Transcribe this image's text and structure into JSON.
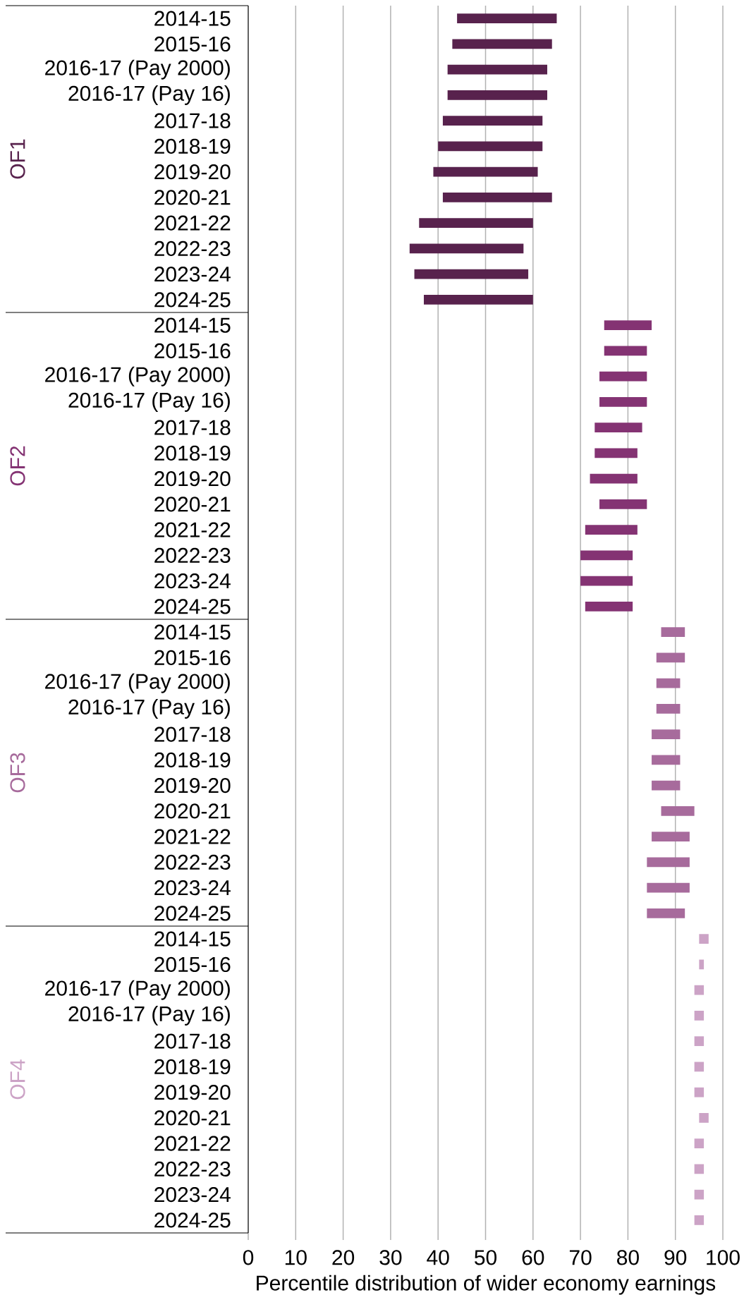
{
  "chart_data": {
    "type": "bar",
    "orientation": "horizontal",
    "xlabel": "Percentile distribution of wider economy earnings",
    "categories": [
      "2014-15",
      "2015-16",
      "2016-17 (Pay 2000)",
      "2016-17 (Pay 16)",
      "2017-18",
      "2018-19",
      "2019-20",
      "2020-21",
      "2021-22",
      "2022-23",
      "2023-24",
      "2024-25",
      "2014-15",
      "2015-16",
      "2016-17 (Pay 2000)",
      "2016-17 (Pay 16)",
      "2017-18",
      "2018-19",
      "2019-20",
      "2020-21",
      "2021-22",
      "2022-23",
      "2023-24",
      "2024-25",
      "2014-15",
      "2015-16",
      "2016-17 (Pay 2000)",
      "2016-17 (Pay 16)",
      "2017-18",
      "2018-19",
      "2019-20",
      "2020-21",
      "2021-22",
      "2022-23",
      "2023-24",
      "2024-25",
      "2014-15",
      "2015-16",
      "2016-17 (Pay 2000)",
      "2016-17 (Pay 16)",
      "2017-18",
      "2018-19",
      "2019-20",
      "2020-21",
      "2021-22",
      "2022-23",
      "2023-24",
      "2024-25"
    ],
    "series": [
      {
        "name": "OF1",
        "color": "#58224d",
        "base": [
          44,
          43,
          42,
          42,
          41,
          40,
          39,
          41,
          36,
          34,
          35,
          37,
          null,
          null,
          null,
          null,
          null,
          null,
          null,
          null,
          null,
          null,
          null,
          null,
          null,
          null,
          null,
          null,
          null,
          null,
          null,
          null,
          null,
          null,
          null,
          null,
          null,
          null,
          null,
          null,
          null,
          null,
          null,
          null,
          null,
          null,
          null,
          null
        ],
        "values": [
          21,
          21,
          21,
          21,
          21,
          22,
          22,
          23,
          24,
          24,
          24,
          23,
          null,
          null,
          null,
          null,
          null,
          null,
          null,
          null,
          null,
          null,
          null,
          null,
          null,
          null,
          null,
          null,
          null,
          null,
          null,
          null,
          null,
          null,
          null,
          null,
          null,
          null,
          null,
          null,
          null,
          null,
          null,
          null,
          null,
          null,
          null,
          null
        ]
      },
      {
        "name": "OF2",
        "color": "#843373",
        "base": [
          null,
          null,
          null,
          null,
          null,
          null,
          null,
          null,
          null,
          null,
          null,
          null,
          75,
          75,
          74,
          74,
          73,
          73,
          72,
          74,
          71,
          70,
          70,
          71,
          null,
          null,
          null,
          null,
          null,
          null,
          null,
          null,
          null,
          null,
          null,
          null,
          null,
          null,
          null,
          null,
          null,
          null,
          null,
          null,
          null,
          null,
          null,
          null
        ],
        "values": [
          null,
          null,
          null,
          null,
          null,
          null,
          null,
          null,
          null,
          null,
          null,
          null,
          10,
          9,
          10,
          10,
          10,
          9,
          10,
          10,
          11,
          11,
          11,
          10,
          null,
          null,
          null,
          null,
          null,
          null,
          null,
          null,
          null,
          null,
          null,
          null,
          null,
          null,
          null,
          null,
          null,
          null,
          null,
          null,
          null,
          null,
          null,
          null
        ]
      },
      {
        "name": "OF3",
        "color": "#a76b9c",
        "base": [
          null,
          null,
          null,
          null,
          null,
          null,
          null,
          null,
          null,
          null,
          null,
          null,
          null,
          null,
          null,
          null,
          null,
          null,
          null,
          null,
          null,
          null,
          null,
          null,
          87,
          86,
          86,
          86,
          85,
          85,
          85,
          87,
          85,
          84,
          84,
          84,
          null,
          null,
          null,
          null,
          null,
          null,
          null,
          null,
          null,
          null,
          null,
          null
        ],
        "values": [
          null,
          null,
          null,
          null,
          null,
          null,
          null,
          null,
          null,
          null,
          null,
          null,
          null,
          null,
          null,
          null,
          null,
          null,
          null,
          null,
          null,
          null,
          null,
          null,
          5,
          6,
          5,
          5,
          6,
          6,
          6,
          7,
          8,
          9,
          9,
          8,
          null,
          null,
          null,
          null,
          null,
          null,
          null,
          null,
          null,
          null,
          null,
          null
        ]
      },
      {
        "name": "OF4",
        "color": "#cca3c6",
        "base": [
          null,
          null,
          null,
          null,
          null,
          null,
          null,
          null,
          null,
          null,
          null,
          null,
          null,
          null,
          null,
          null,
          null,
          null,
          null,
          null,
          null,
          null,
          null,
          null,
          null,
          null,
          null,
          null,
          null,
          null,
          null,
          null,
          null,
          null,
          null,
          null,
          95,
          95,
          94,
          94,
          94,
          94,
          94,
          95,
          94,
          94,
          94,
          94
        ],
        "values": [
          null,
          null,
          null,
          null,
          null,
          null,
          null,
          null,
          null,
          null,
          null,
          null,
          null,
          null,
          null,
          null,
          null,
          null,
          null,
          null,
          null,
          null,
          null,
          null,
          null,
          null,
          null,
          null,
          null,
          null,
          null,
          null,
          null,
          null,
          null,
          null,
          2,
          1,
          2,
          2,
          2,
          2,
          2,
          2,
          2,
          2,
          2,
          2
        ]
      }
    ],
    "xlim": [
      0,
      100
    ],
    "xticks": [
      0,
      10,
      20,
      30,
      40,
      50,
      60,
      70,
      80,
      90,
      100
    ],
    "grid": "x"
  }
}
